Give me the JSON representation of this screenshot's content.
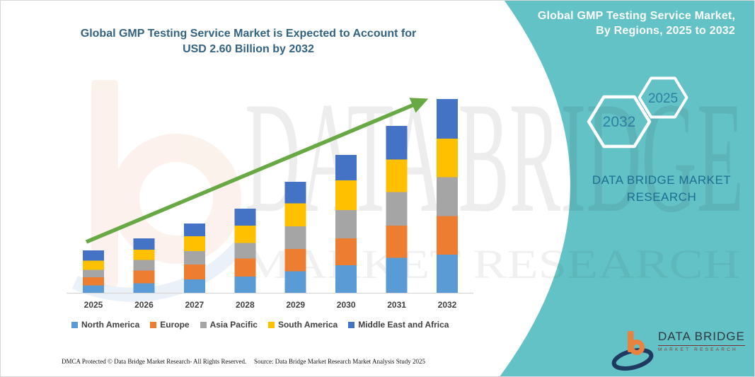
{
  "header": {
    "left_title_line1": "Global GMP Testing Service Market is Expected to Account for",
    "left_title_line2": "USD 2.60 Billion by 2032",
    "panel_title_line1": "Global GMP Testing Service Market,",
    "panel_title_line2": "By Regions, 2025 to 2032"
  },
  "side_panel": {
    "hexagons": [
      {
        "label": "2032"
      },
      {
        "label": "2025"
      }
    ],
    "brand_text": "DATA BRIDGE MARKET RESEARCH",
    "panel_color": "#63c2c6"
  },
  "watermark": {
    "line1": "DATA BRIDGE",
    "line2": "MARKET RESEARCH"
  },
  "logo": {
    "name_text": "DATA BRIDGE",
    "sub_text": "MARKET RESEARCH"
  },
  "footer": {
    "left_text": "DMCA Protected © Data Bridge Market Research- All Rights Reserved.",
    "right_text": "Source: Data Bridge Market Research Market Analysis Study 2025"
  },
  "chart_data": {
    "type": "bar",
    "stacked": true,
    "title": "Global GMP Testing Service Market is Expected to Account for USD 2.60 Billion by 2032",
    "subtitle": "Global GMP Testing Service Market, By Regions, 2025 to 2032",
    "unit": "USD Billion",
    "categories": [
      "2025",
      "2026",
      "2027",
      "2028",
      "2029",
      "2030",
      "2031",
      "2032"
    ],
    "series": [
      {
        "name": "North America",
        "color": "#5b9bd5",
        "values": [
          0.1,
          0.13,
          0.18,
          0.22,
          0.29,
          0.37,
          0.47,
          0.51
        ]
      },
      {
        "name": "Europe",
        "color": "#ed7d31",
        "values": [
          0.11,
          0.17,
          0.2,
          0.24,
          0.3,
          0.36,
          0.43,
          0.52
        ]
      },
      {
        "name": "Asia Pacific",
        "color": "#a5a5a5",
        "values": [
          0.1,
          0.14,
          0.18,
          0.21,
          0.3,
          0.38,
          0.45,
          0.52
        ]
      },
      {
        "name": "South America",
        "color": "#ffc000",
        "values": [
          0.12,
          0.14,
          0.2,
          0.23,
          0.31,
          0.4,
          0.44,
          0.52
        ]
      },
      {
        "name": "Middle East and Africa",
        "color": "#4472c4",
        "values": [
          0.14,
          0.15,
          0.17,
          0.23,
          0.29,
          0.34,
          0.45,
          0.53
        ]
      }
    ],
    "totals": [
      0.57,
      0.73,
      0.93,
      1.13,
      1.49,
      1.85,
      2.24,
      2.6
    ],
    "end_value_label": "USD 2.60 Billion by 2032",
    "trend_arrow": true,
    "legend_position": "bottom",
    "ylim": [
      0,
      2.8
    ],
    "gridlines": false,
    "colors": {
      "arrow_green": "#69a945",
      "axis_line": "#d6d6d6",
      "axis_text": "#404040"
    }
  }
}
